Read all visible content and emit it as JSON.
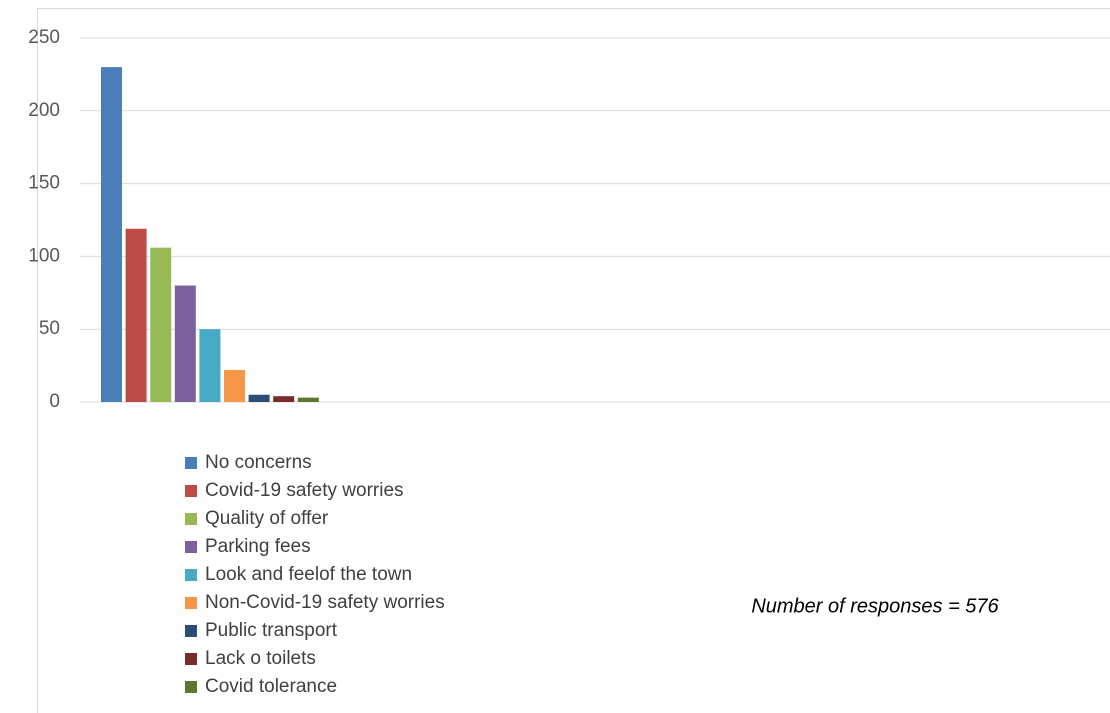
{
  "chart_data": {
    "type": "bar",
    "categories": [
      null
    ],
    "series": [
      {
        "name": "No concerns",
        "color": "#4a7ebb",
        "values": [
          230
        ]
      },
      {
        "name": "Covid-19 safety worries",
        "color": "#be4b48",
        "values": [
          119
        ]
      },
      {
        "name": "Quality of offer",
        "color": "#98b954",
        "values": [
          106
        ]
      },
      {
        "name": "Parking fees",
        "color": "#7d60a0",
        "values": [
          80
        ]
      },
      {
        "name": "Look and feelof the town",
        "color": "#46aac5",
        "values": [
          50
        ]
      },
      {
        "name": "Non-Covid-19 safety worries",
        "color": "#f79646",
        "values": [
          22
        ]
      },
      {
        "name": "Public transport",
        "color": "#2c4d75",
        "values": [
          5
        ]
      },
      {
        "name": "Lack o toilets",
        "color": "#772c2a",
        "values": [
          4
        ]
      },
      {
        "name": "Covid tolerance",
        "color": "#5f7530",
        "values": [
          3
        ]
      }
    ],
    "ylim": [
      0,
      250
    ],
    "yticks": [
      0,
      50,
      100,
      150,
      200,
      250
    ],
    "grid": true,
    "legend": "bottom",
    "annotation": "Number of responses = 576"
  }
}
